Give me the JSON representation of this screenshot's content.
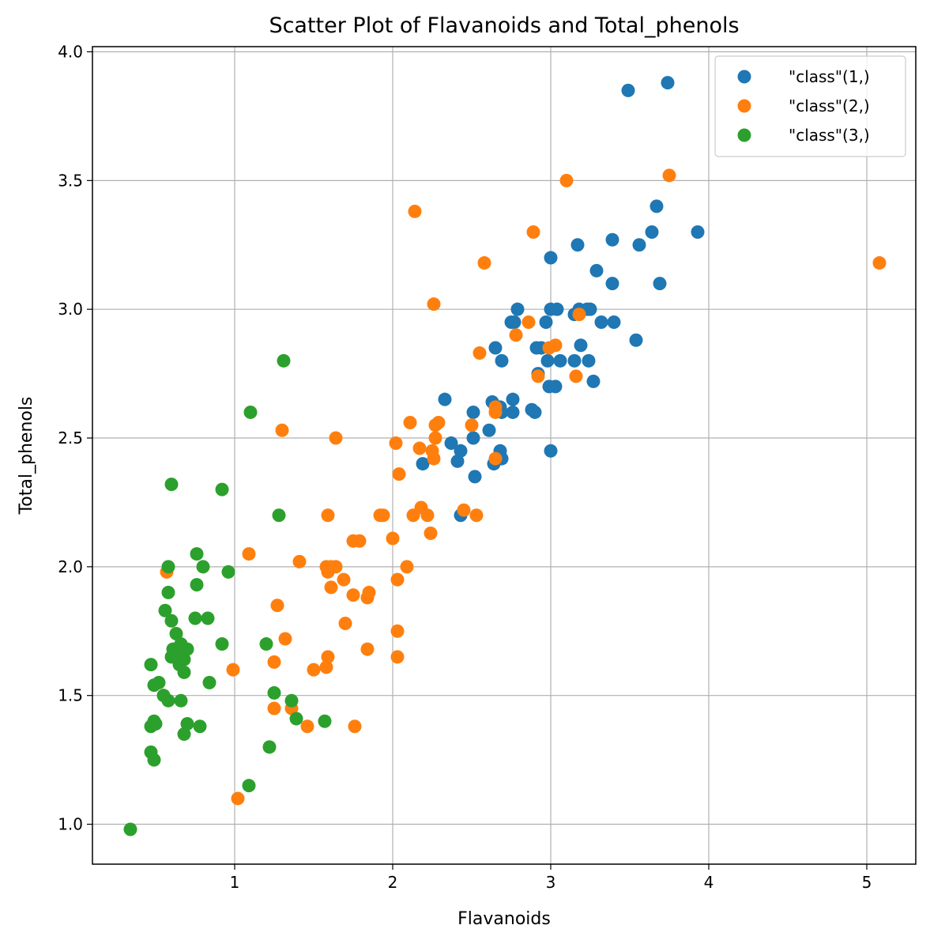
{
  "chart_data": {
    "type": "scatter",
    "title": "Scatter Plot of Flavanoids and Total_phenols",
    "xlabel": "Flavanoids",
    "ylabel": "Total_phenols",
    "xlim": [
      0.1,
      5.31
    ],
    "ylim": [
      0.845,
      4.02
    ],
    "xticks": [
      1,
      2,
      3,
      4,
      5
    ],
    "yticks": [
      1.0,
      1.5,
      2.0,
      2.5,
      3.0,
      3.5,
      4.0
    ],
    "xtick_labels": [
      "1",
      "2",
      "3",
      "4",
      "5"
    ],
    "ytick_labels": [
      "1.0",
      "1.5",
      "2.0",
      "2.5",
      "3.0",
      "3.5",
      "4.0"
    ],
    "grid": true,
    "legend_position": "top-right",
    "series": [
      {
        "name": "\"class\"(1,)",
        "color": "#1f77b4",
        "points": [
          [
            3.49,
            3.85
          ],
          [
            3.74,
            3.88
          ],
          [
            3.67,
            3.4
          ],
          [
            3.64,
            3.3
          ],
          [
            3.93,
            3.3
          ],
          [
            3.56,
            3.25
          ],
          [
            3.39,
            3.27
          ],
          [
            3.17,
            3.25
          ],
          [
            3.0,
            3.2
          ],
          [
            3.29,
            3.15
          ],
          [
            3.39,
            3.1
          ],
          [
            3.69,
            3.1
          ],
          [
            2.79,
            3.0
          ],
          [
            3.0,
            3.0
          ],
          [
            3.04,
            3.0
          ],
          [
            3.18,
            3.0
          ],
          [
            3.23,
            3.0
          ],
          [
            3.25,
            3.0
          ],
          [
            2.75,
            2.95
          ],
          [
            2.77,
            2.95
          ],
          [
            2.97,
            2.95
          ],
          [
            3.32,
            2.95
          ],
          [
            3.4,
            2.95
          ],
          [
            3.15,
            2.98
          ],
          [
            3.54,
            2.88
          ],
          [
            3.19,
            2.86
          ],
          [
            2.65,
            2.85
          ],
          [
            2.91,
            2.85
          ],
          [
            2.94,
            2.85
          ],
          [
            2.98,
            2.8
          ],
          [
            3.06,
            2.8
          ],
          [
            3.15,
            2.8
          ],
          [
            3.24,
            2.8
          ],
          [
            2.69,
            2.8
          ],
          [
            2.92,
            2.75
          ],
          [
            3.27,
            2.72
          ],
          [
            2.99,
            2.7
          ],
          [
            3.03,
            2.7
          ],
          [
            2.33,
            2.65
          ],
          [
            2.63,
            2.64
          ],
          [
            2.76,
            2.65
          ],
          [
            2.68,
            2.62
          ],
          [
            2.88,
            2.61
          ],
          [
            2.9,
            2.6
          ],
          [
            2.76,
            2.6
          ],
          [
            2.69,
            2.6
          ],
          [
            2.51,
            2.6
          ],
          [
            2.61,
            2.53
          ],
          [
            2.51,
            2.5
          ],
          [
            2.37,
            2.48
          ],
          [
            2.43,
            2.45
          ],
          [
            2.68,
            2.45
          ],
          [
            3.0,
            2.45
          ],
          [
            2.69,
            2.42
          ],
          [
            2.41,
            2.41
          ],
          [
            2.64,
            2.4
          ],
          [
            2.19,
            2.4
          ],
          [
            2.52,
            2.35
          ],
          [
            2.43,
            2.2
          ]
        ]
      },
      {
        "name": "\"class\"(2,)",
        "color": "#ff7f0e",
        "points": [
          [
            5.08,
            3.18
          ],
          [
            3.75,
            3.52
          ],
          [
            3.1,
            3.5
          ],
          [
            2.14,
            3.38
          ],
          [
            2.89,
            3.3
          ],
          [
            2.58,
            3.18
          ],
          [
            2.26,
            3.02
          ],
          [
            3.18,
            2.98
          ],
          [
            2.86,
            2.95
          ],
          [
            2.78,
            2.9
          ],
          [
            3.03,
            2.86
          ],
          [
            2.99,
            2.85
          ],
          [
            2.55,
            2.83
          ],
          [
            2.92,
            2.74
          ],
          [
            3.16,
            2.74
          ],
          [
            2.65,
            2.62
          ],
          [
            2.65,
            2.6
          ],
          [
            2.11,
            2.56
          ],
          [
            2.29,
            2.56
          ],
          [
            2.27,
            2.55
          ],
          [
            2.5,
            2.55
          ],
          [
            1.3,
            2.53
          ],
          [
            1.64,
            2.5
          ],
          [
            2.27,
            2.5
          ],
          [
            2.02,
            2.48
          ],
          [
            2.17,
            2.46
          ],
          [
            2.25,
            2.45
          ],
          [
            2.26,
            2.42
          ],
          [
            2.65,
            2.42
          ],
          [
            2.04,
            2.36
          ],
          [
            2.18,
            2.23
          ],
          [
            2.45,
            2.22
          ],
          [
            1.92,
            2.2
          ],
          [
            1.94,
            2.2
          ],
          [
            1.59,
            2.2
          ],
          [
            2.13,
            2.2
          ],
          [
            2.22,
            2.2
          ],
          [
            2.53,
            2.2
          ],
          [
            2.24,
            2.13
          ],
          [
            2.0,
            2.11
          ],
          [
            1.75,
            2.1
          ],
          [
            1.79,
            2.1
          ],
          [
            1.09,
            2.05
          ],
          [
            1.41,
            2.02
          ],
          [
            1.58,
            2.0
          ],
          [
            1.61,
            2.0
          ],
          [
            1.64,
            2.0
          ],
          [
            2.09,
            2.0
          ],
          [
            1.59,
            1.98
          ],
          [
            0.57,
            1.98
          ],
          [
            1.69,
            1.95
          ],
          [
            2.03,
            1.95
          ],
          [
            1.61,
            1.92
          ],
          [
            1.75,
            1.89
          ],
          [
            1.85,
            1.9
          ],
          [
            1.84,
            1.88
          ],
          [
            1.27,
            1.85
          ],
          [
            1.7,
            1.78
          ],
          [
            2.03,
            1.75
          ],
          [
            1.32,
            1.72
          ],
          [
            1.84,
            1.68
          ],
          [
            1.59,
            1.65
          ],
          [
            2.03,
            1.65
          ],
          [
            1.25,
            1.63
          ],
          [
            1.58,
            1.61
          ],
          [
            1.5,
            1.6
          ],
          [
            0.99,
            1.6
          ],
          [
            1.25,
            1.45
          ],
          [
            1.36,
            1.45
          ],
          [
            1.46,
            1.38
          ],
          [
            1.76,
            1.38
          ],
          [
            1.02,
            1.1
          ]
        ]
      },
      {
        "name": "\"class\"(3,)",
        "color": "#2ca02c",
        "points": [
          [
            1.31,
            2.8
          ],
          [
            1.1,
            2.6
          ],
          [
            0.6,
            2.32
          ],
          [
            0.92,
            2.3
          ],
          [
            1.28,
            2.2
          ],
          [
            0.76,
            2.05
          ],
          [
            0.58,
            2.0
          ],
          [
            0.8,
            2.0
          ],
          [
            0.96,
            1.98
          ],
          [
            0.76,
            1.93
          ],
          [
            0.58,
            1.9
          ],
          [
            0.56,
            1.83
          ],
          [
            0.75,
            1.8
          ],
          [
            0.83,
            1.8
          ],
          [
            0.6,
            1.79
          ],
          [
            0.63,
            1.74
          ],
          [
            0.66,
            1.7
          ],
          [
            0.92,
            1.7
          ],
          [
            1.2,
            1.7
          ],
          [
            0.61,
            1.68
          ],
          [
            0.7,
            1.68
          ],
          [
            0.63,
            1.67
          ],
          [
            0.65,
            1.65
          ],
          [
            0.6,
            1.65
          ],
          [
            0.68,
            1.64
          ],
          [
            0.65,
            1.62
          ],
          [
            0.47,
            1.62
          ],
          [
            0.68,
            1.59
          ],
          [
            0.84,
            1.55
          ],
          [
            0.52,
            1.55
          ],
          [
            0.49,
            1.54
          ],
          [
            1.25,
            1.51
          ],
          [
            0.55,
            1.5
          ],
          [
            0.58,
            1.48
          ],
          [
            0.66,
            1.48
          ],
          [
            1.36,
            1.48
          ],
          [
            1.39,
            1.41
          ],
          [
            1.57,
            1.4
          ],
          [
            0.49,
            1.4
          ],
          [
            0.5,
            1.39
          ],
          [
            0.7,
            1.39
          ],
          [
            0.78,
            1.38
          ],
          [
            0.47,
            1.38
          ],
          [
            0.68,
            1.35
          ],
          [
            1.22,
            1.3
          ],
          [
            0.47,
            1.28
          ],
          [
            0.49,
            1.25
          ],
          [
            1.09,
            1.15
          ],
          [
            0.34,
            0.98
          ]
        ]
      }
    ]
  }
}
